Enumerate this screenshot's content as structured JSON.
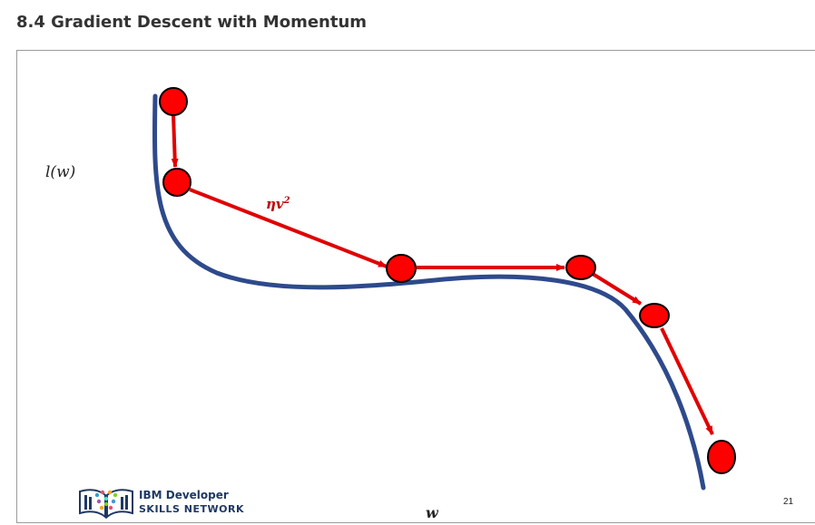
{
  "page": {
    "title": "8.4 Gradient Descent with Momentum"
  },
  "slide": {
    "y_label": "l(w)",
    "x_label": "w",
    "step_label": {
      "base": "ηv",
      "exponent": "2"
    },
    "page_number": "21"
  },
  "logo": {
    "line1": "IBM Developer",
    "line2": "SKILLS NETWORK"
  },
  "colors": {
    "curve": "#2e4a8c",
    "points": "#ff0000",
    "arrows": "#e00000",
    "label_red": "#c00000",
    "logo_navy": "#1f3864"
  },
  "icons": {
    "logo": "open-book-network-icon"
  }
}
